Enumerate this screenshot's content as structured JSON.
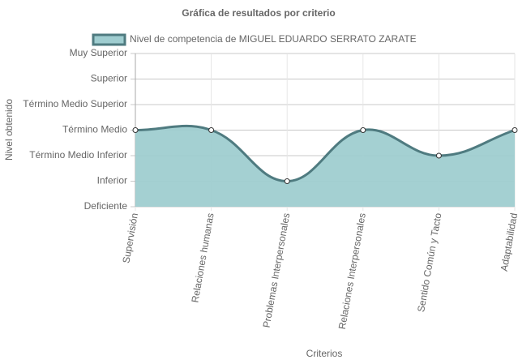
{
  "chart_data": {
    "type": "line",
    "title": "Gráfica de resultados por criterio",
    "x_label": "Criterios",
    "y_label": "Nivel obtenido",
    "categories": [
      "Supervisión",
      "Relaciones humanas",
      "Problemas Interpersonales",
      "Relaciones Interpersonales",
      "Sentido Común y Tacto",
      "Adaptabilidad"
    ],
    "series": [
      {
        "name": "Nivel de competencia de MIGUEL EDUARDO SERRATO ZARATE",
        "color": "#4f7b80",
        "fill": "#9fcdd0",
        "values": [
          3,
          3,
          1,
          3,
          2,
          3
        ]
      }
    ],
    "ylim": [
      0,
      6
    ],
    "yticks": [
      {
        "value": 0,
        "label": "Deficiente"
      },
      {
        "value": 1,
        "label": "Inferior"
      },
      {
        "value": 2,
        "label": "Término Medio Inferior"
      },
      {
        "value": 3,
        "label": "Término Medio"
      },
      {
        "value": 4,
        "label": "Término Medio Superior"
      },
      {
        "value": 5,
        "label": "Superior"
      },
      {
        "value": 6,
        "label": "Muy Superior"
      }
    ],
    "grid": true,
    "legend": "top"
  }
}
